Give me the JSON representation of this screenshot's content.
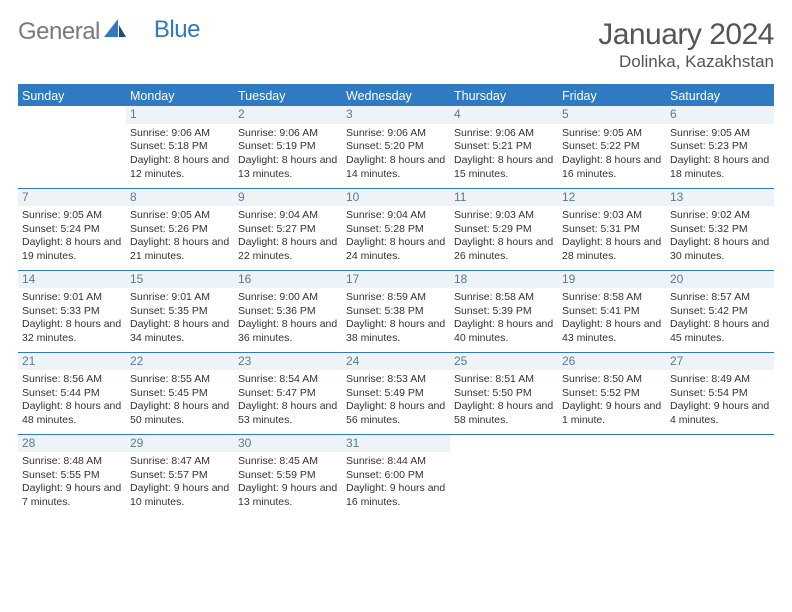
{
  "brand": {
    "textA": "General",
    "textB": "Blue"
  },
  "title": "January 2024",
  "location": "Dolinka, Kazakhstan",
  "colors": {
    "header_bg": "#2f7ac0",
    "header_text": "#ffffff",
    "daynum_bg": "#eef3f7",
    "daynum_text": "#5a7a95",
    "rule": "#2f7ac0",
    "body_text": "#333333",
    "title_text": "#555555",
    "logo_gray": "#7a7a7a",
    "logo_blue": "#2f7ac0"
  },
  "weekdays": [
    "Sunday",
    "Monday",
    "Tuesday",
    "Wednesday",
    "Thursday",
    "Friday",
    "Saturday"
  ],
  "weeks": [
    [
      {
        "num": "",
        "sunrise": "",
        "sunset": "",
        "daylight": ""
      },
      {
        "num": "1",
        "sunrise": "Sunrise: 9:06 AM",
        "sunset": "Sunset: 5:18 PM",
        "daylight": "Daylight: 8 hours and 12 minutes."
      },
      {
        "num": "2",
        "sunrise": "Sunrise: 9:06 AM",
        "sunset": "Sunset: 5:19 PM",
        "daylight": "Daylight: 8 hours and 13 minutes."
      },
      {
        "num": "3",
        "sunrise": "Sunrise: 9:06 AM",
        "sunset": "Sunset: 5:20 PM",
        "daylight": "Daylight: 8 hours and 14 minutes."
      },
      {
        "num": "4",
        "sunrise": "Sunrise: 9:06 AM",
        "sunset": "Sunset: 5:21 PM",
        "daylight": "Daylight: 8 hours and 15 minutes."
      },
      {
        "num": "5",
        "sunrise": "Sunrise: 9:05 AM",
        "sunset": "Sunset: 5:22 PM",
        "daylight": "Daylight: 8 hours and 16 minutes."
      },
      {
        "num": "6",
        "sunrise": "Sunrise: 9:05 AM",
        "sunset": "Sunset: 5:23 PM",
        "daylight": "Daylight: 8 hours and 18 minutes."
      }
    ],
    [
      {
        "num": "7",
        "sunrise": "Sunrise: 9:05 AM",
        "sunset": "Sunset: 5:24 PM",
        "daylight": "Daylight: 8 hours and 19 minutes."
      },
      {
        "num": "8",
        "sunrise": "Sunrise: 9:05 AM",
        "sunset": "Sunset: 5:26 PM",
        "daylight": "Daylight: 8 hours and 21 minutes."
      },
      {
        "num": "9",
        "sunrise": "Sunrise: 9:04 AM",
        "sunset": "Sunset: 5:27 PM",
        "daylight": "Daylight: 8 hours and 22 minutes."
      },
      {
        "num": "10",
        "sunrise": "Sunrise: 9:04 AM",
        "sunset": "Sunset: 5:28 PM",
        "daylight": "Daylight: 8 hours and 24 minutes."
      },
      {
        "num": "11",
        "sunrise": "Sunrise: 9:03 AM",
        "sunset": "Sunset: 5:29 PM",
        "daylight": "Daylight: 8 hours and 26 minutes."
      },
      {
        "num": "12",
        "sunrise": "Sunrise: 9:03 AM",
        "sunset": "Sunset: 5:31 PM",
        "daylight": "Daylight: 8 hours and 28 minutes."
      },
      {
        "num": "13",
        "sunrise": "Sunrise: 9:02 AM",
        "sunset": "Sunset: 5:32 PM",
        "daylight": "Daylight: 8 hours and 30 minutes."
      }
    ],
    [
      {
        "num": "14",
        "sunrise": "Sunrise: 9:01 AM",
        "sunset": "Sunset: 5:33 PM",
        "daylight": "Daylight: 8 hours and 32 minutes."
      },
      {
        "num": "15",
        "sunrise": "Sunrise: 9:01 AM",
        "sunset": "Sunset: 5:35 PM",
        "daylight": "Daylight: 8 hours and 34 minutes."
      },
      {
        "num": "16",
        "sunrise": "Sunrise: 9:00 AM",
        "sunset": "Sunset: 5:36 PM",
        "daylight": "Daylight: 8 hours and 36 minutes."
      },
      {
        "num": "17",
        "sunrise": "Sunrise: 8:59 AM",
        "sunset": "Sunset: 5:38 PM",
        "daylight": "Daylight: 8 hours and 38 minutes."
      },
      {
        "num": "18",
        "sunrise": "Sunrise: 8:58 AM",
        "sunset": "Sunset: 5:39 PM",
        "daylight": "Daylight: 8 hours and 40 minutes."
      },
      {
        "num": "19",
        "sunrise": "Sunrise: 8:58 AM",
        "sunset": "Sunset: 5:41 PM",
        "daylight": "Daylight: 8 hours and 43 minutes."
      },
      {
        "num": "20",
        "sunrise": "Sunrise: 8:57 AM",
        "sunset": "Sunset: 5:42 PM",
        "daylight": "Daylight: 8 hours and 45 minutes."
      }
    ],
    [
      {
        "num": "21",
        "sunrise": "Sunrise: 8:56 AM",
        "sunset": "Sunset: 5:44 PM",
        "daylight": "Daylight: 8 hours and 48 minutes."
      },
      {
        "num": "22",
        "sunrise": "Sunrise: 8:55 AM",
        "sunset": "Sunset: 5:45 PM",
        "daylight": "Daylight: 8 hours and 50 minutes."
      },
      {
        "num": "23",
        "sunrise": "Sunrise: 8:54 AM",
        "sunset": "Sunset: 5:47 PM",
        "daylight": "Daylight: 8 hours and 53 minutes."
      },
      {
        "num": "24",
        "sunrise": "Sunrise: 8:53 AM",
        "sunset": "Sunset: 5:49 PM",
        "daylight": "Daylight: 8 hours and 56 minutes."
      },
      {
        "num": "25",
        "sunrise": "Sunrise: 8:51 AM",
        "sunset": "Sunset: 5:50 PM",
        "daylight": "Daylight: 8 hours and 58 minutes."
      },
      {
        "num": "26",
        "sunrise": "Sunrise: 8:50 AM",
        "sunset": "Sunset: 5:52 PM",
        "daylight": "Daylight: 9 hours and 1 minute."
      },
      {
        "num": "27",
        "sunrise": "Sunrise: 8:49 AM",
        "sunset": "Sunset: 5:54 PM",
        "daylight": "Daylight: 9 hours and 4 minutes."
      }
    ],
    [
      {
        "num": "28",
        "sunrise": "Sunrise: 8:48 AM",
        "sunset": "Sunset: 5:55 PM",
        "daylight": "Daylight: 9 hours and 7 minutes."
      },
      {
        "num": "29",
        "sunrise": "Sunrise: 8:47 AM",
        "sunset": "Sunset: 5:57 PM",
        "daylight": "Daylight: 9 hours and 10 minutes."
      },
      {
        "num": "30",
        "sunrise": "Sunrise: 8:45 AM",
        "sunset": "Sunset: 5:59 PM",
        "daylight": "Daylight: 9 hours and 13 minutes."
      },
      {
        "num": "31",
        "sunrise": "Sunrise: 8:44 AM",
        "sunset": "Sunset: 6:00 PM",
        "daylight": "Daylight: 9 hours and 16 minutes."
      },
      {
        "num": "",
        "sunrise": "",
        "sunset": "",
        "daylight": ""
      },
      {
        "num": "",
        "sunrise": "",
        "sunset": "",
        "daylight": ""
      },
      {
        "num": "",
        "sunrise": "",
        "sunset": "",
        "daylight": ""
      }
    ]
  ]
}
